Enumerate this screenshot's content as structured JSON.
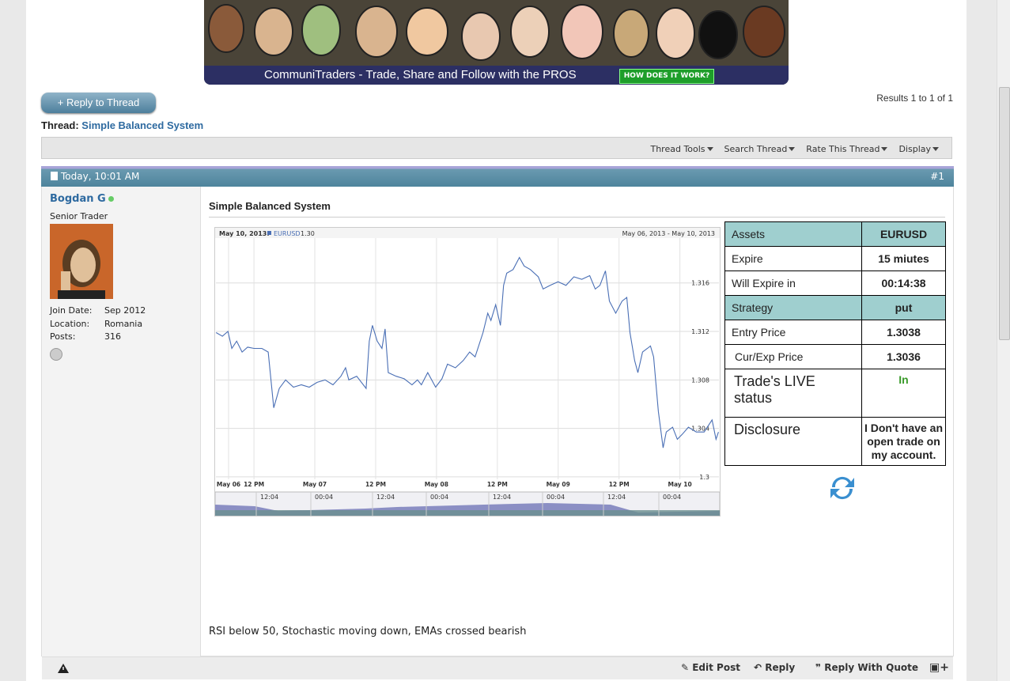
{
  "banner": {
    "text": "CommuniTraders - Trade, Share and Follow with the PROS",
    "button": "HOW DOES IT WORK?"
  },
  "reply_button": "+ Reply to Thread",
  "results": "Results 1 to 1 of 1",
  "thread": {
    "label": "Thread:",
    "title": "Simple Balanced System"
  },
  "toolbar": [
    "Thread Tools",
    "Search Thread",
    "Rate This Thread",
    "Display"
  ],
  "post": {
    "date": "Today, 10:01 AM",
    "number": "#1",
    "user": {
      "name": "Bogdan G",
      "rank": "Senior Trader",
      "info": [
        [
          "Join Date:",
          "Sep 2012"
        ],
        [
          "Location:",
          "Romania"
        ],
        [
          "Posts:",
          "316"
        ]
      ]
    },
    "title": "Simple Balanced System",
    "message": "RSI below 50, Stochastic moving down, EMAs crossed bearish",
    "table": [
      [
        "Assets",
        "EURUSD"
      ],
      [
        "Expire",
        "15 miutes"
      ],
      [
        "Will Expire in",
        "00:14:38"
      ],
      [
        "Strategy",
        "put"
      ],
      [
        "Entry Price",
        "1.3038"
      ],
      [
        "Cur/Exp Price",
        "1.3036"
      ],
      [
        "Trade's LIVE status",
        "In"
      ],
      [
        "Disclosure",
        "I Don't have an open trade on my account."
      ]
    ],
    "actions": [
      "Edit Post",
      "Reply",
      "Reply With Quote"
    ]
  },
  "chart_data": {
    "type": "line",
    "date_label": "May 10, 2013:",
    "series_label": "EURUSD",
    "last_label": "1.30",
    "range_label": "May 06, 2013 - May 10, 2013",
    "navigator_labels": [
      "12:04",
      "00:04",
      "12:04",
      "00:04",
      "12:04",
      "00:04",
      "12:04",
      "00:04"
    ],
    "xlim": [
      4.5,
      103.7
    ],
    "xticks": [
      {
        "value": 7,
        "label": "May 06"
      },
      {
        "value": 12,
        "label": "12 PM"
      },
      {
        "value": 24,
        "label": "May 07"
      },
      {
        "value": 36,
        "label": "12 PM"
      },
      {
        "value": 48,
        "label": "May 08"
      },
      {
        "value": 60,
        "label": "12 PM"
      },
      {
        "value": 72,
        "label": "May 09"
      },
      {
        "value": 84,
        "label": "12 PM"
      },
      {
        "value": 96,
        "label": "May 10"
      }
    ],
    "ylim": [
      1.2998,
      1.3197
    ],
    "yticks": [
      1.3,
      1.304,
      1.308,
      1.312,
      1.316
    ],
    "grid": true,
    "series": [
      {
        "name": "EURUSD",
        "color": "#4a6fb5",
        "x": [
          4.53,
          5.78,
          6.87,
          7.64,
          8.58,
          9.67,
          10.76,
          12.01,
          13.56,
          14.81,
          15.9,
          16.99,
          18.24,
          19.79,
          21.35,
          22.91,
          24.47,
          26.02,
          27.58,
          29.14,
          30.07,
          30.7,
          32.26,
          34.12,
          34.75,
          35.37,
          36.31,
          37.24,
          37.86,
          38.49,
          40.04,
          41.6,
          43.16,
          44.25,
          45.03,
          46.27,
          47.83,
          49.08,
          50.17,
          51.73,
          53.28,
          54.53,
          55.62,
          57.18,
          58.11,
          58.74,
          59.67,
          60.6,
          61.23,
          61.85,
          63.1,
          64.34,
          65.28,
          66.52,
          68.08,
          69.02,
          70.42,
          71.98,
          73.53,
          75.09,
          76.65,
          78.21,
          79.3,
          80.23,
          81.32,
          82.1,
          83.35,
          84.59,
          85.53,
          86.15,
          87.08,
          87.71,
          88.64,
          89.58,
          90.2,
          90.82,
          91.76,
          92.69,
          93.31,
          94.56,
          95.5,
          96.43,
          97.68,
          99.23,
          100.79,
          102.35,
          103.13,
          103.6
        ],
        "values": [
          1.3119,
          1.3116,
          1.312,
          1.3106,
          1.3112,
          1.3103,
          1.3107,
          1.3106,
          1.3106,
          1.3103,
          1.3057,
          1.3073,
          1.308,
          1.3074,
          1.3076,
          1.3074,
          1.3078,
          1.308,
          1.3076,
          1.3083,
          1.309,
          1.308,
          1.3083,
          1.3073,
          1.3112,
          1.3125,
          1.3112,
          1.3106,
          1.3122,
          1.3086,
          1.3083,
          1.3081,
          1.3076,
          1.308,
          1.3076,
          1.3086,
          1.3074,
          1.3081,
          1.3093,
          1.309,
          1.3096,
          1.3103,
          1.3099,
          1.3119,
          1.3135,
          1.3129,
          1.3142,
          1.3125,
          1.3158,
          1.3168,
          1.3171,
          1.3181,
          1.3174,
          1.3171,
          1.3165,
          1.3155,
          1.3158,
          1.3161,
          1.3158,
          1.3165,
          1.3163,
          1.3166,
          1.3155,
          1.3158,
          1.317,
          1.3145,
          1.3135,
          1.3145,
          1.3148,
          1.3119,
          1.3096,
          1.3086,
          1.3103,
          1.3106,
          1.3108,
          1.3099,
          1.3054,
          1.3024,
          1.3037,
          1.3041,
          1.3031,
          1.3035,
          1.3041,
          1.3037,
          1.3037,
          1.3047,
          1.3031,
          1.3037
        ]
      }
    ]
  }
}
